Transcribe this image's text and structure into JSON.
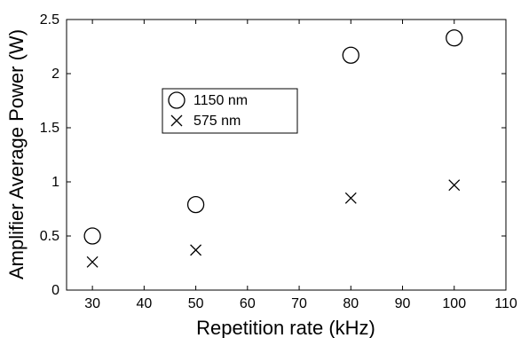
{
  "chart_data": {
    "type": "scatter",
    "title": "",
    "xlabel": "Repetition rate (kHz)",
    "ylabel": "Amplifier Average Power (W)",
    "xlim": [
      25,
      110
    ],
    "ylim": [
      0,
      2.5
    ],
    "xticks": [
      30,
      40,
      50,
      60,
      70,
      80,
      90,
      100,
      110
    ],
    "yticks": [
      0,
      0.5,
      1,
      1.5,
      2,
      2.5
    ],
    "xtick_labels": [
      "30",
      "40",
      "50",
      "60",
      "70",
      "80",
      "90",
      "100",
      "110"
    ],
    "ytick_labels": [
      "0",
      "0.5",
      "1",
      "1.5",
      "2",
      "2.5"
    ],
    "grid": false,
    "legend_position": "upper-left inside",
    "series": [
      {
        "name": "1150 nm",
        "marker": "circle",
        "color": "#000000",
        "x": [
          30,
          50,
          80,
          100
        ],
        "y": [
          0.5,
          0.79,
          2.17,
          2.33
        ]
      },
      {
        "name": "575 nm",
        "marker": "x",
        "color": "#000000",
        "x": [
          30,
          50,
          80,
          100
        ],
        "y": [
          0.26,
          0.37,
          0.85,
          0.97
        ]
      }
    ]
  }
}
